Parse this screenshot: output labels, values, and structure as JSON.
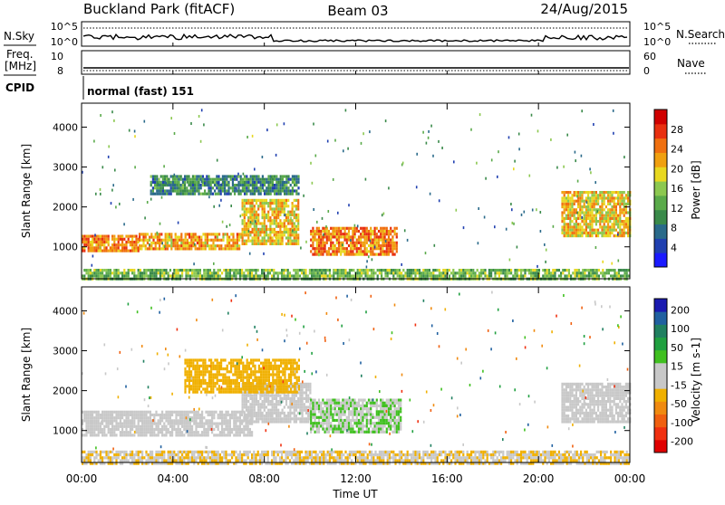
{
  "header": {
    "station": "Buckland Park (fitACF)",
    "beam": "Beam 03",
    "date": "24/Aug/2015"
  },
  "top_panels": {
    "nsky_label": "N.Sky",
    "nsky_ticks": [
      "10^5",
      "10^0"
    ],
    "nsearch_label": "N.Search",
    "freq_label_1": "Freq.",
    "freq_label_2": "[MHz]",
    "freq_ticks": [
      "10",
      "8"
    ],
    "nave_label": "Nave",
    "nave_ticks": [
      "60",
      "0"
    ],
    "cpid_label": "CPID",
    "cpid_text": "normal (fast) 151"
  },
  "chart_data": [
    {
      "type": "heatmap",
      "title": "",
      "quantity": "Power",
      "ylabel": "Slant Range [km]",
      "xlabel": "Time UT",
      "x_ticks": [
        "00:00",
        "04:00",
        "08:00",
        "12:00",
        "16:00",
        "20:00",
        "00:00"
      ],
      "y_ticks": [
        1000,
        2000,
        3000,
        4000
      ],
      "ylim": [
        200,
        4600
      ],
      "xlim_hours": [
        0,
        24
      ],
      "colorbar": {
        "label": "Power [dB]",
        "ticks": [
          4,
          8,
          12,
          16,
          20,
          24,
          28
        ],
        "range": [
          0,
          32
        ],
        "colors": [
          "#1a1aff",
          "#2040b0",
          "#2a6a8a",
          "#3a8a4a",
          "#5aaa4a",
          "#8cc850",
          "#e8d820",
          "#f0a010",
          "#f07010",
          "#e83010",
          "#d00000"
        ]
      },
      "features": [
        {
          "name": "band-1",
          "t_start": 0,
          "t_end": 2.5,
          "range_min": 900,
          "range_max": 1300,
          "level": 24
        },
        {
          "name": "band-2",
          "t_start": 2.5,
          "t_end": 7.0,
          "range_min": 950,
          "range_max": 1350,
          "level": 22
        },
        {
          "name": "band-3",
          "t_start": 7.0,
          "t_end": 9.5,
          "range_min": 1100,
          "range_max": 2200,
          "level": 20
        },
        {
          "name": "band-4",
          "t_start": 10.0,
          "t_end": 13.8,
          "range_min": 800,
          "range_max": 1500,
          "level": 24
        },
        {
          "name": "band-5",
          "t_start": 21.0,
          "t_end": 24.0,
          "range_min": 1300,
          "range_max": 2400,
          "level": 20
        },
        {
          "name": "ground",
          "t_start": 0,
          "t_end": 24.0,
          "range_min": 200,
          "range_max": 450,
          "level": 14
        },
        {
          "name": "upper",
          "t_start": 3.0,
          "t_end": 9.5,
          "range_min": 2300,
          "range_max": 2800,
          "level": 10
        }
      ]
    },
    {
      "type": "heatmap",
      "title": "",
      "quantity": "Velocity",
      "ylabel": "Slant Range [km]",
      "xlabel": "Time UT",
      "x_ticks": [
        "00:00",
        "04:00",
        "08:00",
        "12:00",
        "16:00",
        "20:00",
        "00:00"
      ],
      "y_ticks": [
        1000,
        2000,
        3000,
        4000
      ],
      "ylim": [
        200,
        4600
      ],
      "xlim_hours": [
        0,
        24
      ],
      "colorbar": {
        "label": "Velocity [m s-1]",
        "ticks": [
          "200",
          "100",
          "50",
          "15",
          "-15",
          "-50",
          "-100",
          "-200"
        ],
        "range": [
          -250,
          250
        ],
        "colors": [
          "#e00000",
          "#f03010",
          "#f06010",
          "#f08a10",
          "#f0b000",
          "#c8c8c8",
          "#c8c8c8",
          "#40c020",
          "#20a040",
          "#208060",
          "#2060a0",
          "#1a1ab0"
        ]
      },
      "features": [
        {
          "name": "band-1",
          "t_start": 0,
          "t_end": 7.5,
          "range_min": 900,
          "range_max": 1500,
          "velocity": 0
        },
        {
          "name": "band-2",
          "t_start": 7.0,
          "t_end": 10.0,
          "range_min": 1200,
          "range_max": 2200,
          "velocity": 0
        },
        {
          "name": "band-3",
          "t_start": 10.0,
          "t_end": 14.0,
          "range_min": 1000,
          "range_max": 1800,
          "velocity": 40
        },
        {
          "name": "band-4",
          "t_start": 21.0,
          "t_end": 24.0,
          "range_min": 1200,
          "range_max": 2200,
          "velocity": 0
        },
        {
          "name": "ground",
          "t_start": 0,
          "t_end": 24.0,
          "range_min": 200,
          "range_max": 500,
          "velocity": -40
        },
        {
          "name": "upper",
          "t_start": 4.5,
          "t_end": 9.5,
          "range_min": 2000,
          "range_max": 2800,
          "velocity": -60
        }
      ]
    }
  ]
}
